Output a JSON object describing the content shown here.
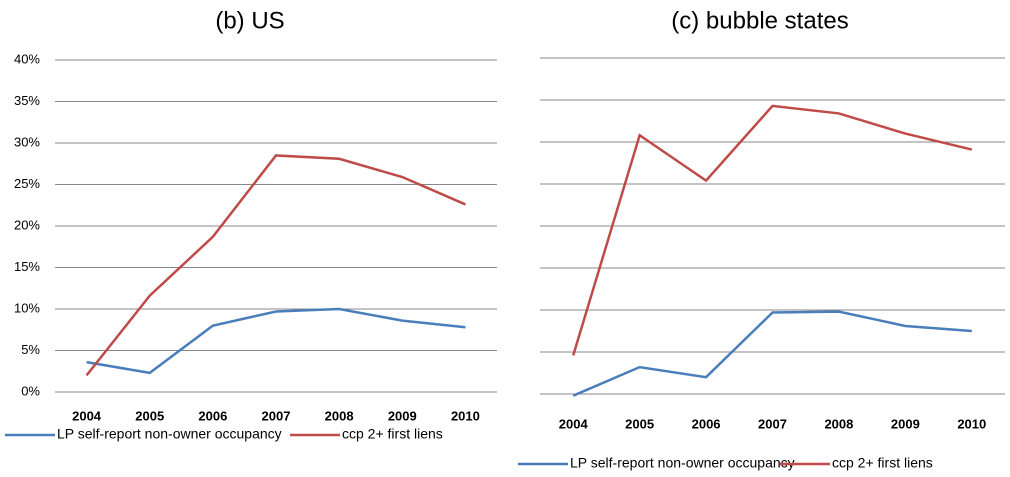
{
  "chart_data": [
    {
      "type": "line",
      "title": "(b)   US",
      "categories": [
        "2004",
        "2005",
        "2006",
        "2007",
        "2008",
        "2009",
        "2010"
      ],
      "series": [
        {
          "name": "LP self-report non-owner occupancy",
          "color": "#4a7ebb",
          "values": [
            3.6,
            2.3,
            8.0,
            9.7,
            10.0,
            8.6,
            7.8
          ]
        },
        {
          "name": "ccp 2+ first liens",
          "color": "#be4b48",
          "values": [
            2.0,
            11.6,
            18.7,
            28.5,
            28.1,
            25.9,
            22.6
          ]
        }
      ],
      "ylim": [
        0,
        40
      ],
      "yticks": [
        {
          "value": 0,
          "label": "0%"
        },
        {
          "value": 5,
          "label": "5%"
        },
        {
          "value": 10,
          "label": "10%"
        },
        {
          "value": 15,
          "label": "15%"
        },
        {
          "value": 20,
          "label": "20%"
        },
        {
          "value": 25,
          "label": "25%"
        },
        {
          "value": 30,
          "label": "30%"
        },
        {
          "value": 35,
          "label": "35%"
        },
        {
          "value": 40,
          "label": "40%"
        }
      ],
      "grid": true,
      "legend": "bottom"
    },
    {
      "type": "line",
      "title": "(c)   bubble states",
      "categories": [
        "2004",
        "2005",
        "2006",
        "2007",
        "2008",
        "2009",
        "2010"
      ],
      "series": [
        {
          "name": "LP self-report non-owner occupancy",
          "color": "#4a7ebb",
          "values": [
            -0.2,
            3.2,
            2.0,
            9.7,
            9.8,
            8.1,
            7.5
          ]
        },
        {
          "name": "ccp 2+ first liens",
          "color": "#be4b48",
          "values": [
            4.6,
            30.8,
            25.4,
            34.3,
            33.4,
            31.0,
            29.1
          ]
        }
      ],
      "ylim": [
        0,
        40
      ],
      "yticks": [
        0,
        5,
        10,
        15,
        20,
        25,
        30,
        35,
        40
      ],
      "grid": true,
      "legend": "bottom"
    }
  ]
}
